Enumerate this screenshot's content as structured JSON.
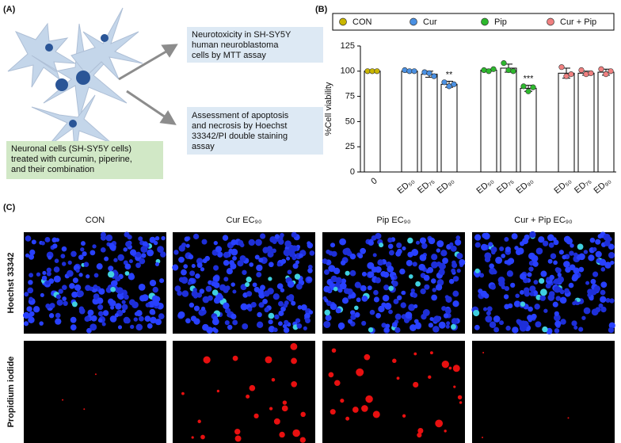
{
  "panel_a": {
    "label": "(A)",
    "boxes": [
      {
        "lines": [
          "Neurotoxicity in SH-SY5Y",
          "human neuroblastoma",
          "cells by MTT assay"
        ]
      },
      {
        "lines": [
          "Assessment of apoptosis",
          "and necrosis by Hoechst",
          "33342/PI double staining",
          "assay"
        ]
      },
      {
        "lines": [
          "Neuronal cells (SH-SY5Y cells)",
          "treated with curcumin, piperine,",
          "and their combination"
        ]
      }
    ]
  },
  "chart_data": {
    "type": "bar",
    "label": "(B)",
    "ylabel": "%Cell viability",
    "categories": [
      "0",
      "ED₅₀",
      "ED₇₅",
      "ED₉₀",
      "ED₅₀",
      "ED₇₅",
      "ED₉₀",
      "ED₅₀",
      "ED₇₅",
      "ED₉₀"
    ],
    "ylim": [
      0,
      125
    ],
    "yticks": [
      0,
      25,
      50,
      75,
      100,
      125
    ],
    "series": [
      {
        "name": "CON",
        "color": "#c9b600",
        "values": [
          100,
          null,
          null,
          null,
          null,
          null,
          null,
          null,
          null,
          null
        ],
        "errors": [
          1,
          null,
          null,
          null,
          null,
          null,
          null,
          null,
          null,
          null
        ],
        "points": [
          [
            100,
            100,
            100
          ],
          null,
          null,
          null,
          null,
          null,
          null,
          null,
          null,
          null
        ],
        "significance": [
          null,
          null,
          null,
          null,
          null,
          null,
          null,
          null,
          null,
          null
        ]
      },
      {
        "name": "Cur",
        "color": "#4a90e2",
        "values": [
          null,
          100,
          97,
          87,
          null,
          null,
          null,
          null,
          null,
          null
        ],
        "errors": [
          null,
          1,
          3,
          3,
          null,
          null,
          null,
          null,
          null,
          null
        ],
        "points": [
          null,
          [
            101,
            100,
            100
          ],
          [
            99,
            98,
            95
          ],
          [
            89,
            85,
            87
          ],
          null,
          null,
          null,
          null,
          null,
          null
        ],
        "significance": [
          null,
          null,
          null,
          "**",
          null,
          null,
          null,
          null,
          null,
          null
        ]
      },
      {
        "name": "Pip",
        "color": "#2db82d",
        "values": [
          null,
          null,
          null,
          null,
          101,
          103,
          83,
          null,
          null,
          null
        ],
        "errors": [
          null,
          null,
          null,
          null,
          1,
          4,
          3,
          null,
          null,
          null
        ],
        "points": [
          null,
          null,
          null,
          null,
          [
            101,
            100,
            102
          ],
          [
            108,
            101,
            100
          ],
          [
            85,
            80,
            84
          ],
          null,
          null,
          null
        ],
        "significance": [
          null,
          null,
          null,
          null,
          null,
          null,
          "***",
          null,
          null,
          null
        ]
      },
      {
        "name": "Cur + Pip",
        "color": "#f08080",
        "values": [
          null,
          null,
          null,
          null,
          null,
          null,
          null,
          98,
          98,
          99
        ],
        "errors": [
          null,
          null,
          null,
          null,
          null,
          null,
          null,
          5,
          2,
          3
        ],
        "points": [
          null,
          null,
          null,
          null,
          null,
          null,
          null,
          [
            104,
            95,
            97
          ],
          [
            101,
            97,
            98
          ],
          [
            102,
            97,
            100
          ]
        ],
        "significance": [
          null,
          null,
          null,
          null,
          null,
          null,
          null,
          null,
          null,
          null
        ]
      }
    ]
  },
  "panel_c": {
    "label": "(C)",
    "columns": [
      "CON",
      "Cur EC₉₀",
      "Pip EC₉₀",
      "Cur + Pip EC₉₀"
    ],
    "rows": [
      "Hoechst 33342",
      "Propidium iodide"
    ]
  }
}
